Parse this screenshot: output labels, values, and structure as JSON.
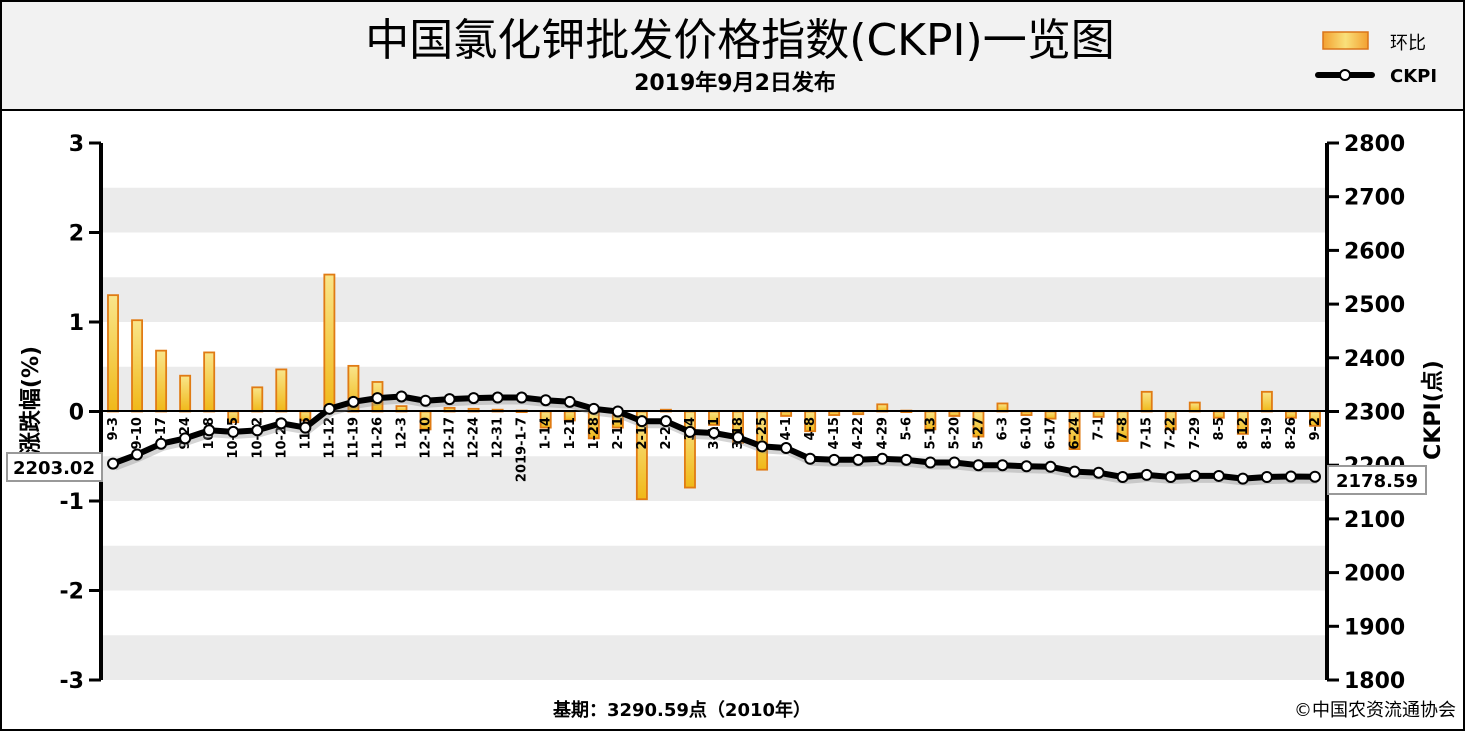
{
  "header": {
    "title": "中国氯化钾批发价格指数(CKPI)一览图",
    "subtitle": "2019年9月2日发布"
  },
  "legend": [
    {
      "label": "环比",
      "kind": "bar"
    },
    {
      "label": "CKPI",
      "kind": "line"
    }
  ],
  "footer": {
    "base": "基期：3290.59点（2010年）",
    "copyright": "©中国农资流通协会"
  },
  "chart_data": {
    "type": "bar+line",
    "categories": [
      "9-3",
      "9-10",
      "9-17",
      "9-24",
      "10-8",
      "10-15",
      "10-22",
      "10-29",
      "11-5",
      "11-12",
      "11-19",
      "11-26",
      "12-3",
      "12-10",
      "12-17",
      "12-24",
      "12-31",
      "2019-1-7",
      "1-14",
      "1-21",
      "1-28",
      "2-11",
      "2-18",
      "2-25",
      "3-4",
      "3-11",
      "3-18",
      "3-25",
      "4-1",
      "4-8",
      "4-15",
      "4-22",
      "4-29",
      "5-6",
      "5-13",
      "5-20",
      "5-27",
      "6-3",
      "6-10",
      "6-17",
      "6-24",
      "7-1",
      "7-8",
      "7-15",
      "7-22",
      "7-29",
      "8-5",
      "8-12",
      "8-19",
      "8-26",
      "9-2"
    ],
    "left_axis": {
      "label": "涨跌幅(%)",
      "min": -3,
      "max": 3,
      "ticks": [
        3,
        2,
        1,
        0,
        -1,
        -2,
        -3
      ]
    },
    "right_axis": {
      "label": "CKPI(点)",
      "min": 1800,
      "max": 2800,
      "ticks": [
        2800,
        2700,
        2600,
        2500,
        2400,
        2300,
        2200,
        2100,
        2000,
        1900,
        1800
      ]
    },
    "series": [
      {
        "name": "环比",
        "axis": "left",
        "type": "bar",
        "values": [
          1.3,
          1.02,
          0.68,
          0.4,
          0.66,
          -0.12,
          0.27,
          0.47,
          -0.1,
          1.53,
          0.51,
          0.33,
          0.06,
          -0.2,
          0.04,
          0.03,
          0.02,
          0.01,
          -0.18,
          -0.1,
          -0.3,
          -0.18,
          -0.98,
          0.02,
          -0.85,
          -0.15,
          -0.35,
          -0.65,
          -0.05,
          -0.22,
          -0.04,
          -0.03,
          0.08,
          0.01,
          -0.2,
          -0.05,
          -0.28,
          0.09,
          -0.04,
          -0.08,
          -0.42,
          -0.06,
          -0.33,
          0.22,
          -0.2,
          0.1,
          -0.07,
          -0.25,
          0.22,
          -0.07,
          -0.16
        ]
      },
      {
        "name": "CKPI",
        "axis": "right",
        "type": "line",
        "values": [
          2203.02,
          2220,
          2240,
          2250,
          2265,
          2262,
          2265,
          2278,
          2270,
          2305,
          2318,
          2325,
          2328,
          2320,
          2323,
          2325,
          2326,
          2326,
          2321,
          2318,
          2305,
          2300,
          2282,
          2282,
          2262,
          2260,
          2252,
          2235,
          2232,
          2212,
          2210,
          2210,
          2212,
          2210,
          2205,
          2205,
          2200,
          2200,
          2198,
          2197,
          2188,
          2186,
          2178,
          2182,
          2178,
          2180,
          2180,
          2175,
          2178,
          2179,
          2178.59
        ]
      }
    ],
    "annotations": {
      "first_value": "2203.02",
      "last_value": "2178.59"
    },
    "grid": "horizontal bands",
    "legend_position": "top-right",
    "colors": {
      "bar_fill": "#f6d24a",
      "bar_stroke": "#e07b14",
      "line": "#000000",
      "marker_fill": "#ffffff",
      "band": "#ebebeb"
    }
  }
}
